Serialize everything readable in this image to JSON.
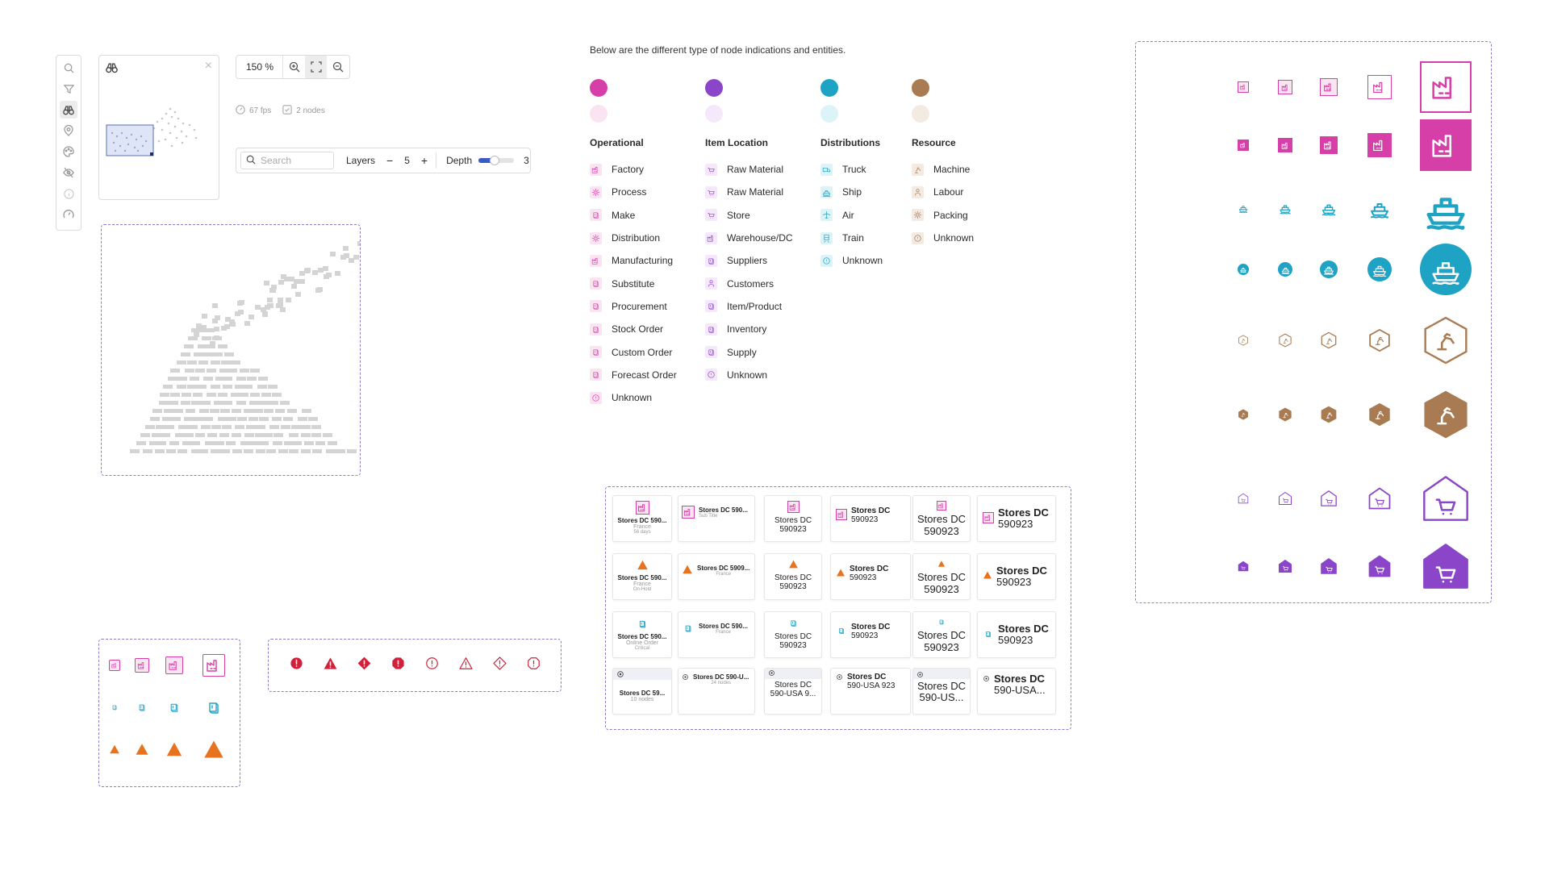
{
  "toolbar": {
    "icons": [
      "search-icon",
      "filter-icon",
      "binoculars-icon",
      "location-pin-icon",
      "palette-icon",
      "eye-off-icon",
      "info-icon",
      "gauge-icon"
    ],
    "active": "binoculars-icon"
  },
  "minimap": {
    "close": "×"
  },
  "zoom": {
    "value": "150 %"
  },
  "stats": {
    "fps": "67 fps",
    "nodes": "2 nodes"
  },
  "search": {
    "placeholder": "Search",
    "layers_label": "Layers",
    "layers_value": "5",
    "depth_label": "Depth",
    "depth_value": "3",
    "depth_level": 0.45
  },
  "intro": "Below are the different type of node indications and entities.",
  "colors": {
    "operational": "#d63fa8",
    "operational_light": "#fbe4f2",
    "item": "#8a45c8",
    "item_light": "#f6e8fb",
    "distribution": "#1fa3c4",
    "distribution_light": "#dcf3f8",
    "resource": "#a97b52",
    "resource_light": "#f3eae2",
    "warning": "#e8731e",
    "error": "#d0213a"
  },
  "legend": [
    {
      "title": "Operational",
      "color": "operational",
      "items": [
        "Factory",
        "Process",
        "Make",
        "Distribution",
        "Manufacturing",
        "Substitute",
        "Procurement",
        "Stock Order",
        "Custom Order",
        "Forecast Order",
        "Unknown"
      ]
    },
    {
      "title": "Item Location",
      "color": "item",
      "items": [
        "Raw Material",
        "Raw Material",
        "Store",
        "Warehouse/DC",
        "Suppliers",
        "Customers",
        "Item/Product",
        "Inventory",
        "Supply",
        "Unknown"
      ]
    },
    {
      "title": "Distributions",
      "color": "distribution",
      "items": [
        "Truck",
        "Ship",
        "Air",
        "Train",
        "Unknown"
      ]
    },
    {
      "title": "Resource",
      "color": "resource",
      "items": [
        "Machine",
        "Labour",
        "Packing",
        "Unknown"
      ]
    }
  ],
  "cards": {
    "row1": [
      {
        "title": "Stores DC 590...",
        "sub": "France",
        "sub2": "56 days"
      },
      {
        "title": "Stores DC 590...",
        "sub": "Sub Title"
      },
      {
        "title": "Stores DC",
        "title2": "590923"
      },
      {
        "title": "Stores DC",
        "title2": "590923"
      },
      {
        "title": "Stores DC",
        "title2": "590923"
      },
      {
        "title": "Stores DC",
        "title2": "590923"
      }
    ],
    "row2": [
      {
        "title": "Stores DC 590...",
        "sub": "France",
        "sub2": "On-Hold"
      },
      {
        "title": "Stores DC 5909...",
        "sub": "France"
      },
      {
        "title": "Stores DC",
        "title2": "590923"
      },
      {
        "title": "Stores DC",
        "title2": "590923"
      },
      {
        "title": "Stores DC",
        "title2": "590923"
      },
      {
        "title": "Stores DC",
        "title2": "590923"
      }
    ],
    "row3": [
      {
        "title": "Stores DC 590...",
        "sub": "Online Order",
        "sub2": "Critical"
      },
      {
        "title": "Stores DC 590...",
        "sub": "France"
      },
      {
        "title": "Stores DC",
        "title2": "590923"
      },
      {
        "title": "Stores DC",
        "title2": "590923"
      },
      {
        "title": "Stores DC",
        "title2": "590923"
      },
      {
        "title": "Stores DC",
        "title2": "590923"
      }
    ],
    "row4": [
      {
        "title": "Stores DC 59...",
        "sub": "10 nodes"
      },
      {
        "title": "Stores DC 590-U...",
        "sub": "24 nodes"
      },
      {
        "title": "Stores DC",
        "title2": "590-USA 9..."
      },
      {
        "title": "Stores DC",
        "title2": "590-USA 923"
      },
      {
        "title": "Stores DC",
        "title2": "590-US..."
      },
      {
        "title": "Stores DC",
        "title2": "590-USA..."
      }
    ]
  }
}
